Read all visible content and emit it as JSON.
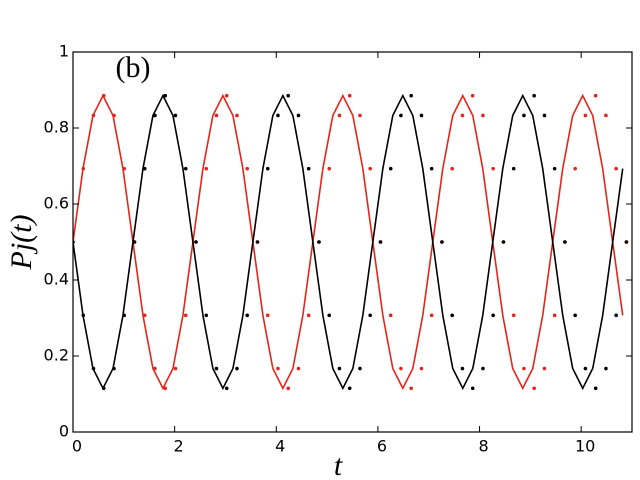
{
  "chart_data": {
    "type": "line",
    "annotation": "(b)",
    "x_label": "t",
    "y_label": "Pj(t)",
    "xlim": [
      0,
      11
    ],
    "ylim": [
      0,
      1
    ],
    "xticks": [
      0,
      2,
      4,
      6,
      8,
      10
    ],
    "yticks": [
      0,
      0.2,
      0.4,
      0.6,
      0.8,
      1
    ],
    "series": [
      {
        "style": "solid",
        "color": "#e3261b",
        "x": [
          0,
          0.197,
          0.393,
          0.59,
          0.787,
          0.983,
          1.18,
          1.377,
          1.573,
          1.77,
          1.967,
          2.163,
          2.36,
          2.557,
          2.753,
          2.95,
          3.147,
          3.343,
          3.54,
          3.737,
          3.933,
          4.13,
          4.327,
          4.523,
          4.72,
          4.917,
          5.113,
          5.31,
          5.507,
          5.703,
          5.9,
          6.097,
          6.293,
          6.49,
          6.687,
          6.883,
          7.08,
          7.277,
          7.473,
          7.67,
          7.867,
          8.063,
          8.26,
          8.457,
          8.653,
          8.85,
          9.047,
          9.243,
          9.44,
          9.637,
          9.833,
          10.03,
          10.227,
          10.423,
          10.62,
          10.817
        ],
        "values": [
          0.5,
          0.693,
          0.833,
          0.885,
          0.833,
          0.693,
          0.5,
          0.307,
          0.167,
          0.115,
          0.167,
          0.307,
          0.5,
          0.693,
          0.833,
          0.885,
          0.833,
          0.693,
          0.5,
          0.307,
          0.167,
          0.115,
          0.167,
          0.307,
          0.5,
          0.693,
          0.833,
          0.885,
          0.833,
          0.693,
          0.5,
          0.307,
          0.167,
          0.115,
          0.167,
          0.307,
          0.5,
          0.693,
          0.833,
          0.885,
          0.833,
          0.693,
          0.5,
          0.307,
          0.167,
          0.115,
          0.167,
          0.307,
          0.5,
          0.693,
          0.833,
          0.885,
          0.833,
          0.693,
          0.5,
          0.307
        ]
      },
      {
        "style": "solid",
        "color": "#000000",
        "x": [
          0,
          0.197,
          0.393,
          0.59,
          0.787,
          0.983,
          1.18,
          1.377,
          1.573,
          1.77,
          1.967,
          2.163,
          2.36,
          2.557,
          2.753,
          2.95,
          3.147,
          3.343,
          3.54,
          3.737,
          3.933,
          4.13,
          4.327,
          4.523,
          4.72,
          4.917,
          5.113,
          5.31,
          5.507,
          5.703,
          5.9,
          6.097,
          6.293,
          6.49,
          6.687,
          6.883,
          7.08,
          7.277,
          7.473,
          7.67,
          7.867,
          8.063,
          8.26,
          8.457,
          8.653,
          8.85,
          9.047,
          9.243,
          9.44,
          9.637,
          9.833,
          10.03,
          10.227,
          10.423,
          10.62,
          10.817
        ],
        "values": [
          0.5,
          0.307,
          0.167,
          0.115,
          0.167,
          0.307,
          0.5,
          0.693,
          0.833,
          0.885,
          0.833,
          0.693,
          0.5,
          0.307,
          0.167,
          0.115,
          0.167,
          0.307,
          0.5,
          0.693,
          0.833,
          0.885,
          0.833,
          0.693,
          0.5,
          0.307,
          0.167,
          0.115,
          0.167,
          0.307,
          0.5,
          0.693,
          0.833,
          0.885,
          0.833,
          0.693,
          0.5,
          0.307,
          0.167,
          0.115,
          0.167,
          0.307,
          0.5,
          0.693,
          0.833,
          0.885,
          0.833,
          0.693,
          0.5,
          0.307,
          0.167,
          0.115,
          0.167,
          0.307,
          0.5,
          0.693
        ]
      },
      {
        "style": "dotted",
        "color": "#e3261b",
        "x": [
          0,
          0.202,
          0.403,
          0.605,
          0.807,
          1.008,
          1.21,
          1.412,
          1.613,
          1.815,
          2.017,
          2.218,
          2.42,
          2.622,
          2.823,
          3.025,
          3.227,
          3.428,
          3.63,
          3.832,
          4.033,
          4.235,
          4.437,
          4.638,
          4.84,
          5.042,
          5.243,
          5.445,
          5.647,
          5.848,
          6.05,
          6.252,
          6.453,
          6.655,
          6.857,
          7.058,
          7.26,
          7.462,
          7.663,
          7.865,
          8.067,
          8.268,
          8.47,
          8.672,
          8.873,
          9.075,
          9.277,
          9.478,
          9.68,
          9.882,
          10.083,
          10.285,
          10.487,
          10.688,
          10.89
        ],
        "values": [
          0.5,
          0.693,
          0.833,
          0.885,
          0.833,
          0.693,
          0.5,
          0.307,
          0.167,
          0.115,
          0.167,
          0.307,
          0.5,
          0.693,
          0.833,
          0.885,
          0.833,
          0.693,
          0.5,
          0.307,
          0.167,
          0.115,
          0.167,
          0.307,
          0.5,
          0.693,
          0.833,
          0.885,
          0.833,
          0.693,
          0.5,
          0.307,
          0.167,
          0.115,
          0.167,
          0.307,
          0.5,
          0.693,
          0.833,
          0.885,
          0.833,
          0.693,
          0.5,
          0.307,
          0.167,
          0.115,
          0.167,
          0.307,
          0.5,
          0.693,
          0.833,
          0.885,
          0.833,
          0.693,
          0.5
        ]
      },
      {
        "style": "dotted",
        "color": "#000000",
        "x": [
          0,
          0.202,
          0.403,
          0.605,
          0.807,
          1.008,
          1.21,
          1.412,
          1.613,
          1.815,
          2.017,
          2.218,
          2.42,
          2.622,
          2.823,
          3.025,
          3.227,
          3.428,
          3.63,
          3.832,
          4.033,
          4.235,
          4.437,
          4.638,
          4.84,
          5.042,
          5.243,
          5.445,
          5.647,
          5.848,
          6.05,
          6.252,
          6.453,
          6.655,
          6.857,
          7.058,
          7.26,
          7.462,
          7.663,
          7.865,
          8.067,
          8.268,
          8.47,
          8.672,
          8.873,
          9.075,
          9.277,
          9.478,
          9.68,
          9.882,
          10.083,
          10.285,
          10.487,
          10.688,
          10.89
        ],
        "values": [
          0.5,
          0.307,
          0.167,
          0.115,
          0.167,
          0.307,
          0.5,
          0.693,
          0.833,
          0.885,
          0.833,
          0.693,
          0.5,
          0.307,
          0.167,
          0.115,
          0.167,
          0.307,
          0.5,
          0.693,
          0.833,
          0.885,
          0.833,
          0.693,
          0.5,
          0.307,
          0.167,
          0.115,
          0.167,
          0.307,
          0.5,
          0.693,
          0.833,
          0.885,
          0.833,
          0.693,
          0.5,
          0.307,
          0.167,
          0.115,
          0.167,
          0.307,
          0.5,
          0.693,
          0.833,
          0.885,
          0.833,
          0.693,
          0.5,
          0.307,
          0.167,
          0.115,
          0.167,
          0.307,
          0.5
        ]
      }
    ]
  }
}
